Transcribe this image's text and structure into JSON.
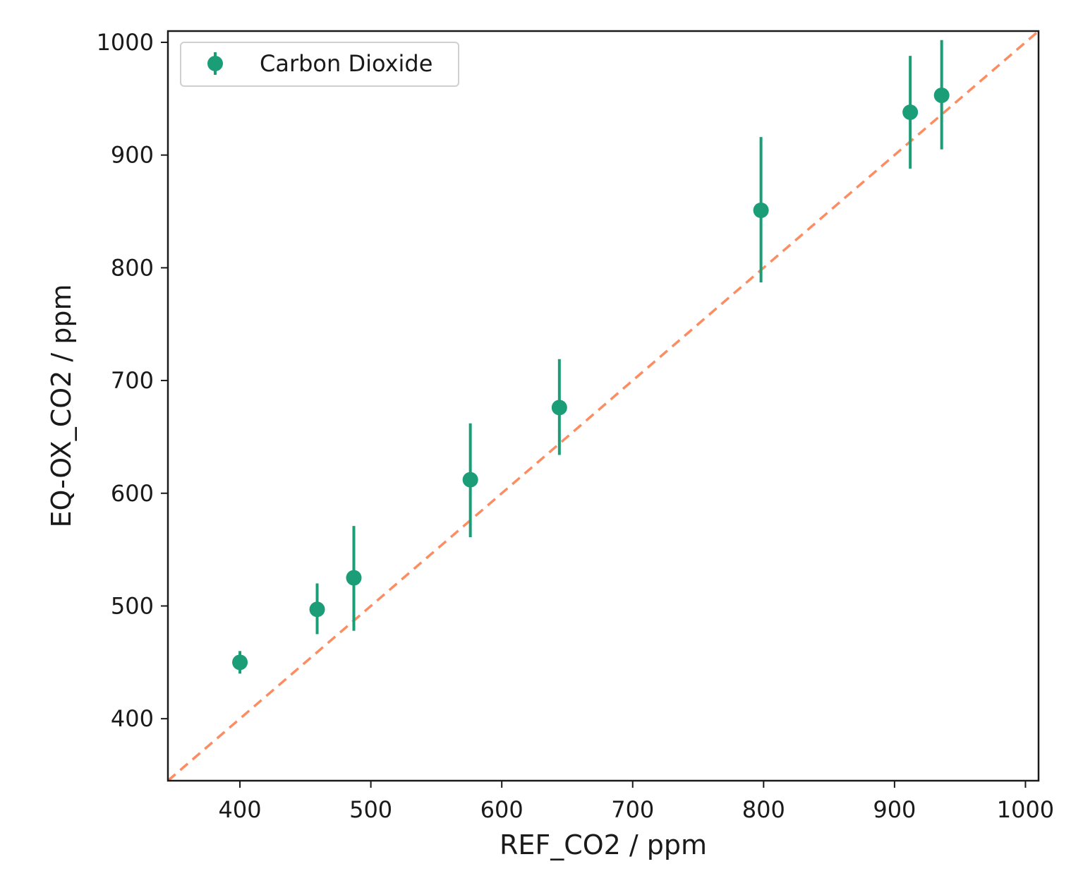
{
  "chart_data": {
    "type": "scatter",
    "title": "",
    "xlabel": "REF_CO2 / ppm",
    "ylabel": "EQ-OX_CO2 / ppm",
    "xlim": [
      345,
      1010
    ],
    "ylim": [
      345,
      1010
    ],
    "x_ticks": [
      400,
      500,
      600,
      700,
      800,
      900,
      1000
    ],
    "x_tick_labels": [
      "400",
      "500",
      "600",
      "700",
      "800",
      "900",
      "1000"
    ],
    "y_ticks": [
      400,
      500,
      600,
      700,
      800,
      900,
      1000
    ],
    "y_tick_labels": [
      "400",
      "500",
      "600",
      "700",
      "800",
      "900",
      "1000"
    ],
    "grid": false,
    "legend": {
      "position": "top-left",
      "entries": [
        {
          "label": "Carbon Dioxide",
          "color": "#1b9e77",
          "marker": "circle-errorbar"
        }
      ]
    },
    "series": [
      {
        "name": "Carbon Dioxide",
        "color": "#1b9e77",
        "points": [
          {
            "x": 400,
            "y": 450,
            "err_low": 440,
            "err_high": 460
          },
          {
            "x": 459,
            "y": 497,
            "err_low": 475,
            "err_high": 520
          },
          {
            "x": 487,
            "y": 525,
            "err_low": 478,
            "err_high": 571
          },
          {
            "x": 576,
            "y": 612,
            "err_low": 561,
            "err_high": 662
          },
          {
            "x": 644,
            "y": 676,
            "err_low": 634,
            "err_high": 719
          },
          {
            "x": 798,
            "y": 851,
            "err_low": 787,
            "err_high": 916
          },
          {
            "x": 912,
            "y": 938,
            "err_low": 888,
            "err_high": 988
          },
          {
            "x": 936,
            "y": 953,
            "err_low": 905,
            "err_high": 1002
          }
        ]
      }
    ],
    "reference_line": {
      "name": "1:1 line",
      "color": "#fc8d62",
      "style": "dashed",
      "from": [
        345,
        345
      ],
      "to": [
        1010,
        1010
      ]
    }
  }
}
